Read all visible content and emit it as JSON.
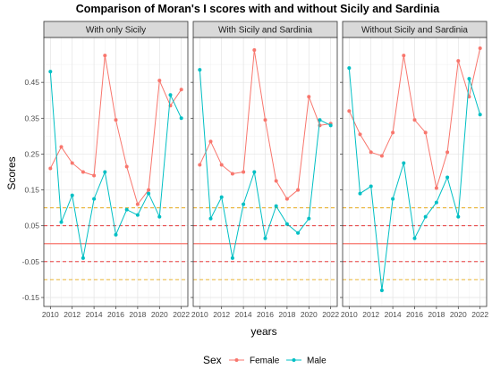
{
  "chart_data": {
    "type": "line",
    "title": "Comparison of Moran's I scores with and without Sicily and Sardinia",
    "xlabel": "years",
    "ylabel": "Scores",
    "xlim": [
      2009.4,
      2022.6
    ],
    "ylim": [
      -0.175,
      0.575
    ],
    "x_ticks": [
      2010,
      2012,
      2014,
      2016,
      2018,
      2020,
      2022
    ],
    "y_ticks": [
      -0.15,
      -0.05,
      0.05,
      0.15,
      0.25,
      0.35,
      0.45
    ],
    "y_tick_labels": [
      "-0.15",
      "-0.05",
      "0.05",
      "0.15",
      "0.25",
      "0.35",
      "0.45"
    ],
    "grid": true,
    "legend": {
      "title": "Sex",
      "position": "bottom",
      "entries": [
        {
          "label": "Female",
          "color": "#F8766D"
        },
        {
          "label": "Male",
          "color": "#00BFC4"
        }
      ]
    },
    "reference_lines": [
      {
        "y": 0.0,
        "color": "#F8766D",
        "style": "solid"
      },
      {
        "y": 0.05,
        "color": "#E31A1C",
        "style": "dashed"
      },
      {
        "y": -0.05,
        "color": "#E31A1C",
        "style": "dashed"
      },
      {
        "y": 0.1,
        "color": "#E6A817",
        "style": "dashed"
      },
      {
        "y": -0.1,
        "color": "#E6A817",
        "style": "dashed"
      }
    ],
    "x": [
      2010,
      2011,
      2012,
      2013,
      2014,
      2015,
      2016,
      2017,
      2018,
      2019,
      2020,
      2021,
      2022
    ],
    "panels": [
      {
        "strip": "With only Sicily",
        "series": [
          {
            "name": "Female",
            "color": "#F8766D",
            "values": [
              0.21,
              0.27,
              0.225,
              0.2,
              0.19,
              0.525,
              0.345,
              0.215,
              0.11,
              0.15,
              0.455,
              0.385,
              0.43
            ]
          },
          {
            "name": "Male",
            "color": "#00BFC4",
            "values": [
              0.48,
              0.06,
              0.135,
              -0.04,
              0.125,
              0.2,
              0.025,
              0.095,
              0.08,
              0.14,
              0.075,
              0.415,
              0.35
            ]
          }
        ]
      },
      {
        "strip": "With Sicily and Sardinia",
        "series": [
          {
            "name": "Female",
            "color": "#F8766D",
            "values": [
              0.22,
              0.285,
              0.22,
              0.195,
              0.2,
              0.54,
              0.345,
              0.175,
              0.125,
              0.15,
              0.41,
              0.33,
              0.335
            ]
          },
          {
            "name": "Male",
            "color": "#00BFC4",
            "values": [
              0.485,
              0.07,
              0.13,
              -0.04,
              0.11,
              0.2,
              0.015,
              0.105,
              0.055,
              0.03,
              0.07,
              0.345,
              0.33
            ]
          }
        ]
      },
      {
        "strip": "Without Sicily and Sardinia",
        "series": [
          {
            "name": "Female",
            "color": "#F8766D",
            "values": [
              0.37,
              0.305,
              0.255,
              0.245,
              0.31,
              0.525,
              0.345,
              0.31,
              0.155,
              0.255,
              0.51,
              0.41,
              0.545
            ]
          },
          {
            "name": "Male",
            "color": "#00BFC4",
            "values": [
              0.49,
              0.14,
              0.16,
              -0.13,
              0.125,
              0.225,
              0.015,
              0.075,
              0.115,
              0.185,
              0.075,
              0.46,
              0.36
            ]
          }
        ]
      }
    ]
  }
}
